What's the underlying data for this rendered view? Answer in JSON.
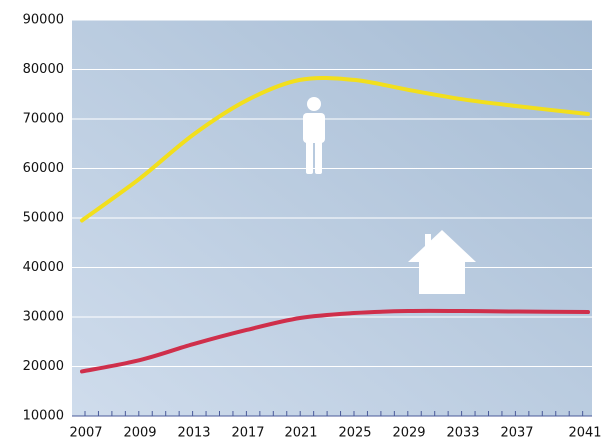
{
  "chart_data": {
    "type": "line",
    "categories": [
      "2007",
      "2009",
      "2013",
      "2017",
      "2021",
      "2025",
      "2029",
      "2033",
      "2037",
      "2041"
    ],
    "series": [
      {
        "color": "#f2df1c",
        "values": [
          49500,
          58000,
          66800,
          73800,
          77900,
          77900,
          75900,
          74000,
          72600,
          71000
        ]
      },
      {
        "color": "#cf2f4b",
        "values": [
          19000,
          21300,
          24500,
          27400,
          29800,
          30800,
          31200,
          31200,
          31100,
          31000
        ]
      }
    ],
    "ylim": [
      10000,
      90000
    ],
    "yticks": [
      10000,
      20000,
      30000,
      40000,
      50000,
      60000,
      70000,
      80000,
      90000
    ],
    "grid": true
  }
}
